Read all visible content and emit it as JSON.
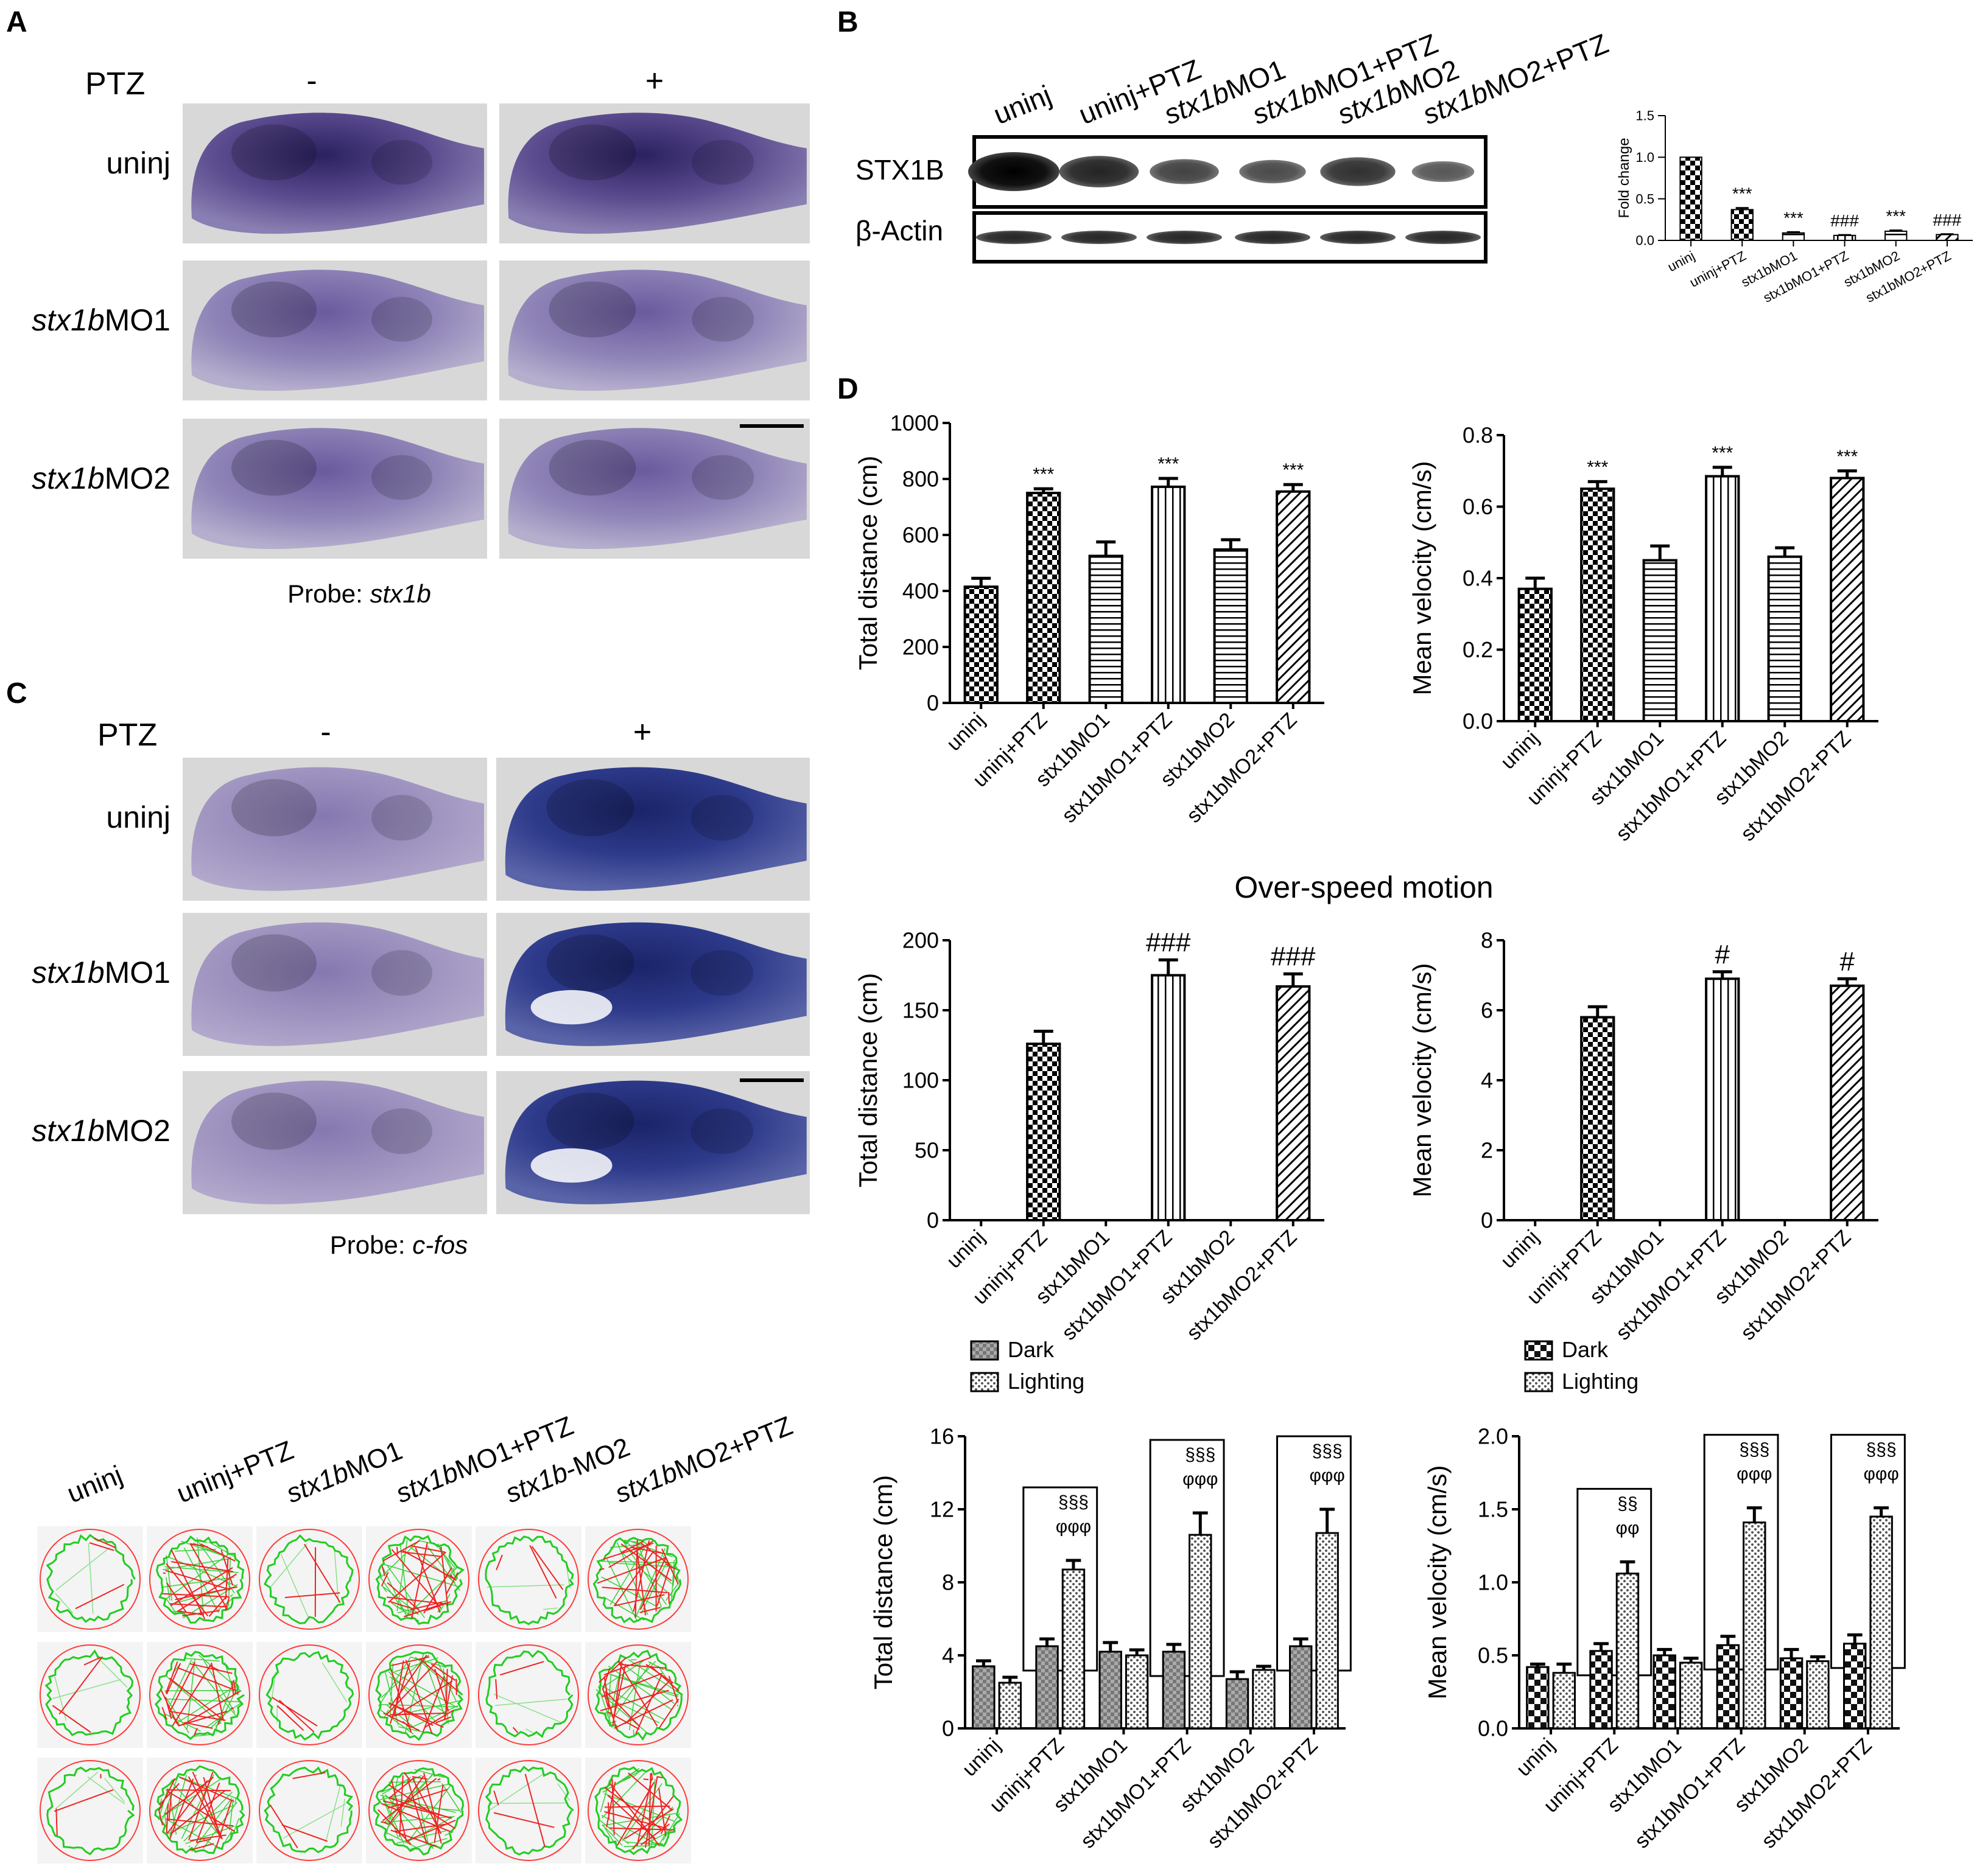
{
  "panel_labels": {
    "a": "A",
    "b": "B",
    "c": "C",
    "d": "D"
  },
  "panel_a": {
    "ptz_label": "PTZ",
    "minus": "-",
    "plus": "+",
    "rows": [
      {
        "italic": "",
        "rest": "uninj"
      },
      {
        "italic": "stx1b",
        "rest": "MO1"
      },
      {
        "italic": "stx1b",
        "rest": "MO2"
      }
    ],
    "probe_prefix": "Probe: ",
    "probe_name": "stx1b"
  },
  "panel_c": {
    "ptz_label": "PTZ",
    "minus": "-",
    "plus": "+",
    "rows": [
      {
        "italic": "",
        "rest": "uninj"
      },
      {
        "italic": "stx1b",
        "rest": "MO1"
      },
      {
        "italic": "stx1b",
        "rest": "MO2"
      }
    ],
    "probe_prefix": "Probe: ",
    "probe_name": "c-fos"
  },
  "panel_b": {
    "lanes": [
      {
        "italic": "",
        "rest": "uninj"
      },
      {
        "italic": "",
        "rest": "uninj+PTZ"
      },
      {
        "italic": "stx1b",
        "rest": "MO1"
      },
      {
        "italic": "stx1b",
        "rest": "MO1+PTZ"
      },
      {
        "italic": "stx1b",
        "rest": "MO2"
      },
      {
        "italic": "stx1b",
        "rest": "MO2+PTZ"
      }
    ],
    "stx1b_label": "STX1B",
    "actin_label": "β-Actin",
    "stx1b_band_intensity": [
      1.0,
      0.72,
      0.48,
      0.42,
      0.62,
      0.32
    ]
  },
  "tracks": {
    "groups": [
      {
        "italic": "",
        "rest": "uninj"
      },
      {
        "italic": "",
        "rest": "uninj+PTZ"
      },
      {
        "italic": "stx1b",
        "rest": "MO1"
      },
      {
        "italic": "stx1b",
        "rest": "MO1+PTZ"
      },
      {
        "italic": "stx1b",
        "rest": "-MO2"
      },
      {
        "italic": "stx1b",
        "rest": "MO2+PTZ"
      }
    ],
    "activity": [
      0.15,
      1.0,
      0.15,
      1.0,
      0.15,
      1.0
    ]
  },
  "chart_data": [
    {
      "id": "b-fold",
      "type": "bar",
      "categories": [
        "uninj",
        "uninj+PTZ",
        "stx1bMO1",
        "stx1bMO1+PTZ",
        "stx1bMO2",
        "stx1bMO2+PTZ"
      ],
      "values": [
        1.0,
        0.37,
        0.09,
        0.06,
        0.11,
        0.07
      ],
      "errors": [
        0,
        0.02,
        0.01,
        0.005,
        0.01,
        0.005
      ],
      "annotations": [
        "",
        "***",
        "***",
        "###",
        "***",
        "###"
      ],
      "ylabel": "Fold change",
      "ylim": [
        0,
        1.5
      ],
      "yticks": [
        "0.0",
        "0.5",
        "1.0",
        "1.5"
      ],
      "tick_values": [
        0,
        0.5,
        1.0,
        1.5
      ]
    },
    {
      "id": "d1-dist",
      "type": "bar",
      "categories": [
        "uninj",
        "uninj+PTZ",
        "stx1bMO1",
        "stx1bMO1+PTZ",
        "stx1bMO2",
        "stx1bMO2+PTZ"
      ],
      "values": [
        415,
        750,
        525,
        772,
        548,
        755
      ],
      "errors": [
        30,
        15,
        50,
        30,
        35,
        25
      ],
      "annotations": [
        "",
        "***",
        "",
        "***",
        "",
        "***"
      ],
      "ylabel": "Total distance (cm)",
      "ylim": [
        0,
        1000
      ],
      "yticks": [
        "0",
        "200",
        "400",
        "600",
        "800",
        "1000"
      ],
      "tick_values": [
        0,
        200,
        400,
        600,
        800,
        1000
      ]
    },
    {
      "id": "d1-vel",
      "type": "bar",
      "categories": [
        "uninj",
        "uninj+PTZ",
        "stx1bMO1",
        "stx1bMO1+PTZ",
        "stx1bMO2",
        "stx1bMO2+PTZ"
      ],
      "values": [
        0.37,
        0.65,
        0.45,
        0.685,
        0.46,
        0.68
      ],
      "errors": [
        0.03,
        0.02,
        0.04,
        0.025,
        0.025,
        0.02
      ],
      "annotations": [
        "",
        "***",
        "",
        "***",
        "",
        "***"
      ],
      "ylabel": "Mean velocity (cm/s)",
      "ylim": [
        0,
        0.8
      ],
      "yticks": [
        "0.0",
        "0.2",
        "0.4",
        "0.6",
        "0.8"
      ],
      "tick_values": [
        0,
        0.2,
        0.4,
        0.6,
        0.8
      ]
    },
    {
      "id": "d2-dist",
      "type": "bar",
      "title": "Over-speed motion",
      "categories": [
        "uninj",
        "uninj+PTZ",
        "stx1bMO1",
        "stx1bMO1+PTZ",
        "stx1bMO2",
        "stx1bMO2+PTZ"
      ],
      "values": [
        0,
        126,
        0,
        175,
        0,
        167
      ],
      "errors": [
        0,
        9,
        0,
        11,
        0,
        9
      ],
      "annotations": [
        "",
        "",
        "",
        "###",
        "",
        "###"
      ],
      "ylabel": "Total distance (cm)",
      "ylim": [
        0,
        200
      ],
      "yticks": [
        "0",
        "50",
        "100",
        "150",
        "200"
      ],
      "tick_values": [
        0,
        50,
        100,
        150,
        200
      ]
    },
    {
      "id": "d2-vel",
      "type": "bar",
      "categories": [
        "uninj",
        "uninj+PTZ",
        "stx1bMO1",
        "stx1bMO1+PTZ",
        "stx1bMO2",
        "stx1bMO2+PTZ"
      ],
      "values": [
        0,
        5.8,
        0,
        6.9,
        0,
        6.7
      ],
      "errors": [
        0,
        0.3,
        0,
        0.2,
        0,
        0.2
      ],
      "annotations": [
        "",
        "",
        "",
        "#",
        "",
        "#"
      ],
      "ylabel": "Mean velocity (cm/s)",
      "ylim": [
        0,
        8
      ],
      "yticks": [
        "0",
        "2",
        "4",
        "6",
        "8"
      ],
      "tick_values": [
        0,
        2,
        4,
        6,
        8
      ]
    },
    {
      "id": "d3-dist",
      "type": "bar",
      "categories": [
        "uninj",
        "uninj+PTZ",
        "stx1bMO1",
        "stx1bMO1+PTZ",
        "stx1bMO2",
        "stx1bMO2+PTZ"
      ],
      "series": [
        {
          "name": "Dark",
          "values": [
            3.4,
            4.5,
            4.2,
            4.2,
            2.7,
            4.5
          ],
          "errors": [
            0.3,
            0.4,
            0.5,
            0.4,
            0.4,
            0.4
          ]
        },
        {
          "name": "Lighting",
          "values": [
            2.5,
            8.7,
            4.0,
            10.6,
            3.2,
            10.7
          ],
          "errors": [
            0.3,
            0.5,
            0.3,
            1.2,
            0.2,
            1.3
          ]
        }
      ],
      "boxed_groups": [
        1,
        3,
        5
      ],
      "group_annotations": [
        [
          "",
          ""
        ],
        [
          "§§§",
          "φφφ"
        ],
        [
          "",
          ""
        ],
        [
          "§§§",
          "φφφ"
        ],
        [
          "",
          ""
        ],
        [
          "§§§",
          "φφφ"
        ]
      ],
      "ylabel": "Total distance (cm)",
      "ylim": [
        0,
        16
      ],
      "yticks": [
        "0",
        "4",
        "8",
        "12",
        "16"
      ],
      "tick_values": [
        0,
        4,
        8,
        12,
        16
      ],
      "legend": "top-left"
    },
    {
      "id": "d3-vel",
      "type": "bar",
      "categories": [
        "uninj",
        "uninj+PTZ",
        "stx1bMO1",
        "stx1bMO1+PTZ",
        "stx1bMO2",
        "stx1bMO2+PTZ"
      ],
      "series": [
        {
          "name": "Dark",
          "values": [
            0.42,
            0.53,
            0.5,
            0.57,
            0.48,
            0.58
          ],
          "errors": [
            0.02,
            0.05,
            0.04,
            0.06,
            0.06,
            0.06
          ]
        },
        {
          "name": "Lighting",
          "values": [
            0.38,
            1.06,
            0.45,
            1.41,
            0.46,
            1.45
          ],
          "errors": [
            0.06,
            0.08,
            0.03,
            0.1,
            0.03,
            0.06
          ]
        }
      ],
      "boxed_groups": [
        1,
        3,
        5
      ],
      "group_annotations": [
        [
          "",
          ""
        ],
        [
          "§§",
          "φφ"
        ],
        [
          "",
          ""
        ],
        [
          "§§§",
          "φφφ"
        ],
        [
          "",
          ""
        ],
        [
          "§§§",
          "φφφ"
        ]
      ],
      "ylabel": "Mean velocity (cm/s)",
      "ylim": [
        0,
        2.0
      ],
      "yticks": [
        "0.0",
        "0.5",
        "1.0",
        "1.5",
        "2.0"
      ],
      "tick_values": [
        0,
        0.5,
        1.0,
        1.5,
        2.0
      ],
      "legend": "top-left"
    }
  ],
  "colors": {
    "ish_bg": "#d8d8d8",
    "stx1b_stain": "#3c2f6e",
    "cfos_stain": "#1a2a6c",
    "track_ring": "#ff3a3a",
    "track_green": "#22cc22",
    "track_red": "#ee2222"
  }
}
